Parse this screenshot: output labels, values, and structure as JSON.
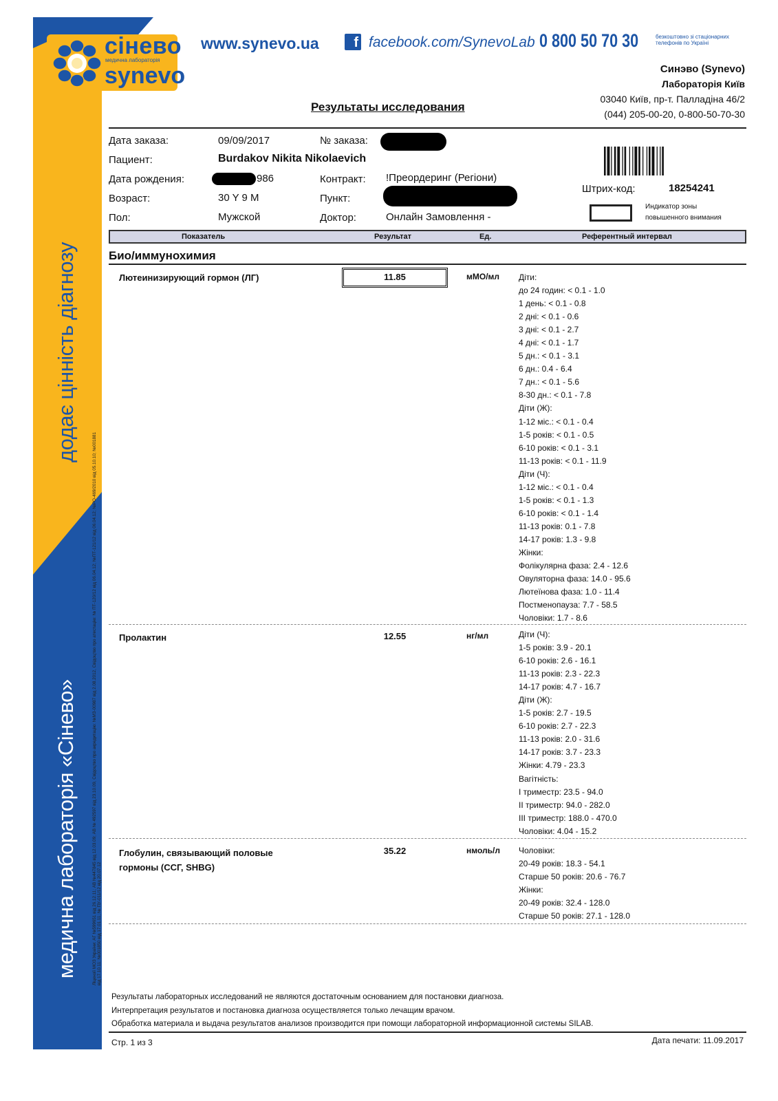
{
  "brand": {
    "logo_cyrillic": "сінево",
    "logo_subtitle": "медична лабораторія",
    "logo_latin": "synevo",
    "website": "www.synevo.ua",
    "facebook": "facebook.com/SynevoLab",
    "hotline": "0 800 50 70 30",
    "hotline_note_1": "безкоштовно зі стаціонарних",
    "hotline_note_2": "телефонів по Україні",
    "slogan": "додає цінність діагнозу",
    "lab_name_vertical": "медична лабораторія «Сінево»",
    "license_line_1": "Ліцензії МОЗ України: АГ №599651 від 26.12.11; АВ №447845 від 12.03.09; АВ № 492597 від 23.10.09, Свідоцтво про акредитацію: №МЗ-00987 від 2.08.2012, Свідоцтво про атестацію: № ПТ-120/12 від 06.04.12; №ПТ-121/12 від 06.04.12; №РО-469/2010 від 05.10.10; №001881",
    "license_line_2": "від 17.10.11; №001850 від 17.01.11; № ПУ-011/12 від 20.07.12",
    "colors": {
      "blue": "#1d55a6",
      "yellow": "#f9b51d"
    }
  },
  "lab": {
    "name": "Синэво (Synevo)",
    "branch": "Лабораторія Київ",
    "address": "03040 Київ, пр-т. Палладіна  46/2",
    "phones": "(044) 205-00-20, 0-800-50-70-30"
  },
  "title": "Результаты исследования",
  "order": {
    "date_label": "Дата заказа:",
    "date": "09/09/2017",
    "number_label": "№ заказа:",
    "patient_label": "Пациент:",
    "patient": "Burdakov Nikita Nikolaevich",
    "birth_label": "Дата рождения:",
    "birth_visible": "986",
    "contract_label": "Контракт:",
    "contract": "!Преордеринг (Регіони)",
    "age_label": "Возраст:",
    "age": "30 Y 9 M",
    "point_label": "Пункт:",
    "sex_label": "Пол:",
    "sex": "Мужской",
    "doctor_label": "Доктор:",
    "doctor": "Онлайн Замовлення -",
    "barcode_label": "Штрих-код:",
    "barcode": "18254241",
    "indicator_1": "Индикатор зоны",
    "indicator_2": "повышенного внимания"
  },
  "columns": {
    "indicator": "Показатель",
    "result": "Результат",
    "unit": "Ед.",
    "reference": "Референтный интервал"
  },
  "section": "Био/иммунохимия",
  "tests": [
    {
      "name": "Лютеинизирующий гормон (ЛГ)",
      "result": "11.85",
      "unit": "мМО/мл",
      "reference": "Діти:\nдо 24 годин: < 0.1 - 1.0\n1 день: < 0.1 - 0.8\n2 дні: < 0.1 - 0.6\n3 дні: < 0.1 - 2.7\n4 дні: < 0.1 - 1.7\n5 дн.: < 0.1 - 3.1\n6 дн.: 0.4 - 6.4\n7 дн.: < 0.1 - 5.6\n8-30 дн.: < 0.1 - 7.8\nДіти (Ж):\n1-12 міс.: < 0.1 - 0.4\n1-5 років: < 0.1 - 0.5\n6-10 років: < 0.1 - 3.1\n11-13 років: < 0.1 - 11.9\nДіти (Ч):\n1-12 міс.: < 0.1 - 0.4\n1-5 років: < 0.1 - 1.3\n6-10 років: < 0.1 - 1.4\n11-13 років: 0.1 - 7.8\n14-17 років: 1.3 - 9.8\nЖінки:\nФолікулярна фаза: 2.4 - 12.6\nОвуляторна фаза: 14.0 - 95.6\nЛютеїнова фаза: 1.0 - 11.4\nПостменопауза: 7.7 - 58.5\nЧоловіки: 1.7 - 8.6"
    },
    {
      "name": "Пролактин",
      "result": "12.55",
      "unit": "нг/мл",
      "reference": "Діти (Ч):\n1-5 років: 3.9 - 20.1\n6-10 років: 2.6 - 16.1\n11-13 років: 2.3 - 22.3\n14-17 років: 4.7 - 16.7\nДіти (Ж):\n1-5 років: 2.7 - 19.5\n6-10 років: 2.7 - 22.3\n11-13 років: 2.0 - 31.6\n14-17 років: 3.7 - 23.3\nЖінки: 4.79 - 23.3\nВагітність:\nI триместр: 23.5 - 94.0\nII триместр: 94.0 - 282.0\nIII триместр: 188.0 - 470.0\nЧоловіки: 4.04 - 15.2"
    },
    {
      "name": "Глобулин, связывающий половые\nгормоны (ССГ, SHBG)",
      "result": "35.22",
      "unit": "нмоль/л",
      "reference": "Чоловіки:\n20-49 років: 18.3 - 54.1\nСтарше 50 років: 20.6 - 76.7\nЖінки:\n20-49 років: 32.4 - 128.0\nСтарше 50 років: 27.1 - 128.0"
    }
  ],
  "footer": {
    "note_1": "Результаты лабораторных исследований не являются достаточным основанием для постановки диагноза.",
    "note_2": "Интерпретация результатов и постановка диагноза осуществляется только лечащим врачом.",
    "note_3": "Обработка материала и выдача результатов анализов производится при помощи лабораторной информационной системы SILAB.",
    "page": "Стр. 1 из 3",
    "print_date": "Дата печати: 11.09.2017"
  }
}
